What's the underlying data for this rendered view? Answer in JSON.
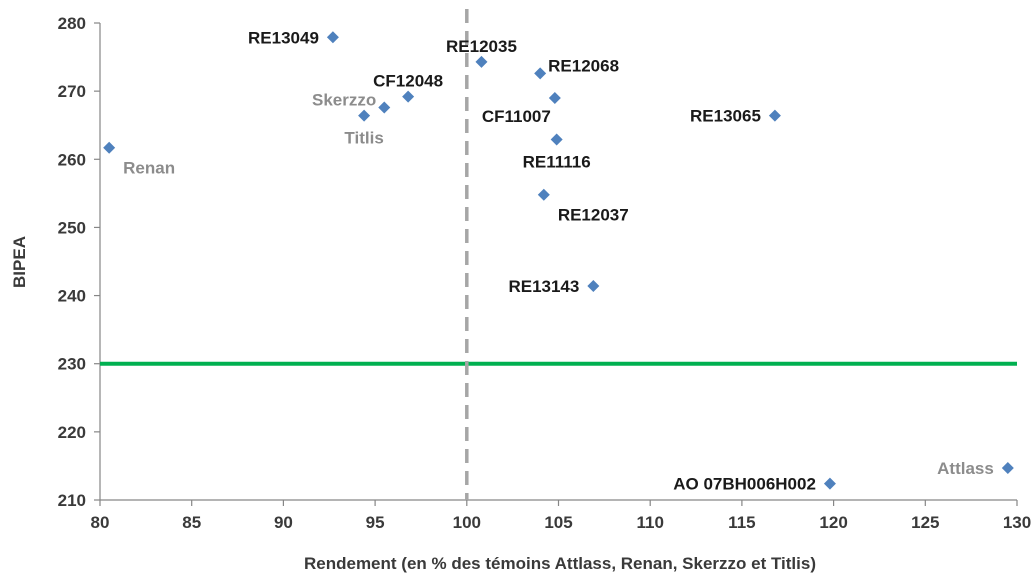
{
  "chart_data": {
    "type": "scatter",
    "xlabel": "Rendement (en % des témoins Attlass, Renan, Skerzzo et Titlis)",
    "ylabel": "BIPEA",
    "xlim": [
      80,
      130
    ],
    "ylim": [
      210,
      280
    ],
    "xticks": [
      80,
      85,
      90,
      95,
      100,
      105,
      110,
      115,
      120,
      125,
      130
    ],
    "yticks": [
      210,
      220,
      230,
      240,
      250,
      260,
      270,
      280
    ],
    "grid": false,
    "marker_color": "#4F81BD",
    "reference_lines": [
      {
        "orientation": "horizontal",
        "value": 230,
        "color": "#00B050",
        "style": "solid"
      },
      {
        "orientation": "vertical",
        "value": 100,
        "color": "#A6A6A6",
        "style": "dashed"
      }
    ],
    "points": [
      {
        "label": "RE13049",
        "x": 92.7,
        "y": 277.9,
        "group": "line",
        "label_pos": "left"
      },
      {
        "label": "RE12035",
        "x": 100.8,
        "y": 274.3,
        "group": "line",
        "label_pos": "above"
      },
      {
        "label": "RE12068",
        "x": 104.0,
        "y": 272.6,
        "group": "line",
        "label_pos": "upper-right"
      },
      {
        "label": "CF12048",
        "x": 96.8,
        "y": 269.2,
        "group": "line",
        "label_pos": "above"
      },
      {
        "label": "Skerzzo",
        "x": 95.5,
        "y": 267.6,
        "group": "control",
        "label_pos": "upper-left"
      },
      {
        "label": "Titlis",
        "x": 94.4,
        "y": 266.4,
        "group": "control",
        "label_pos": "below"
      },
      {
        "label": "CF11007",
        "x": 104.8,
        "y": 269.0,
        "group": "line",
        "label_pos": "lower-left"
      },
      {
        "label": "RE13065",
        "x": 116.8,
        "y": 266.4,
        "group": "line",
        "label_pos": "left"
      },
      {
        "label": "RE11116",
        "x": 104.9,
        "y": 262.9,
        "group": "line",
        "label_pos": "below"
      },
      {
        "label": "Renan",
        "x": 80.5,
        "y": 261.7,
        "group": "control",
        "label_pos": "lower-right"
      },
      {
        "label": "RE12037",
        "x": 104.2,
        "y": 254.8,
        "group": "line",
        "label_pos": "lower-right"
      },
      {
        "label": "RE13143",
        "x": 106.9,
        "y": 241.4,
        "group": "line",
        "label_pos": "left"
      },
      {
        "label": "AO 07BH006H002",
        "x": 119.8,
        "y": 212.4,
        "group": "line",
        "label_pos": "left"
      },
      {
        "label": "Attlass",
        "x": 129.5,
        "y": 214.7,
        "group": "control",
        "label_pos": "left"
      }
    ],
    "label_colors": {
      "line": "#1a1a1a",
      "control": "#8c8c8c"
    }
  }
}
